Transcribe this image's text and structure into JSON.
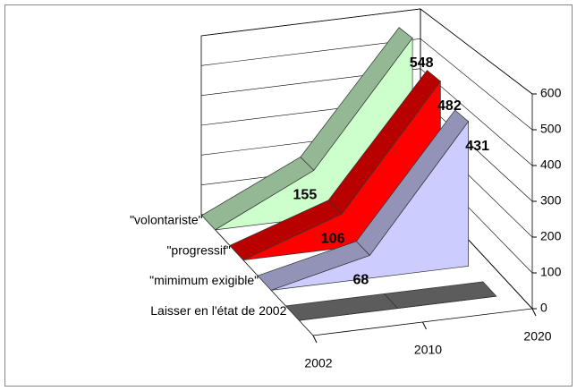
{
  "chart_data": {
    "type": "area3d",
    "categories": [
      "2002",
      "2010",
      "2020"
    ],
    "series": [
      {
        "name": "\"volontariste\"",
        "color": "#ccffcc",
        "values": [
          0,
          155,
          548
        ]
      },
      {
        "name": "\"progressif\"",
        "color": "#ff0000",
        "values": [
          0,
          106,
          482
        ]
      },
      {
        "name": "\"mimimum exigible\"",
        "color": "#ccccff",
        "values": [
          0,
          68,
          431
        ]
      },
      {
        "name": "Laisser en l'état de 2002",
        "color": "#808080",
        "values": [
          0,
          0,
          0
        ]
      }
    ],
    "ylim": [
      0,
      600
    ],
    "yticks": [
      0,
      100,
      200,
      300,
      400,
      500,
      600
    ],
    "grid": true
  }
}
